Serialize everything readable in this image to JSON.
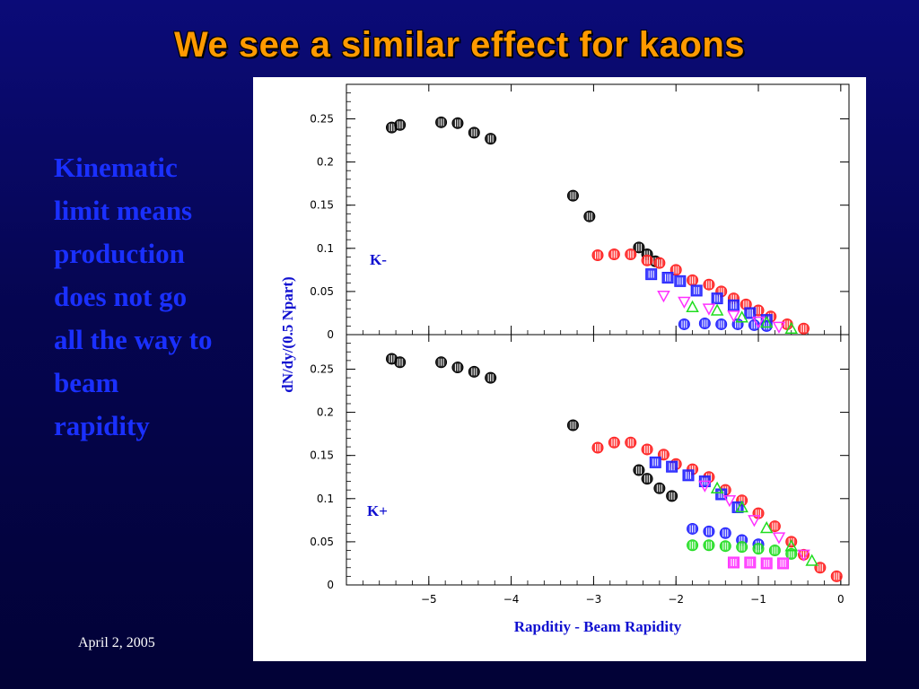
{
  "slide": {
    "title": "We see a similar effect for kaons",
    "body_lines": [
      "Kinematic",
      "limit means",
      "production",
      "does not go",
      "all the way to",
      "beam",
      "rapidity"
    ],
    "footer_date": "April 2, 2005"
  },
  "chart_data": [
    {
      "type": "scatter",
      "panel_label": "K-",
      "xlabel": "Rapditiy - Beam Rapidity",
      "ylabel": "dN/dy/(0.5 Npart)",
      "xlim": [
        -6,
        0.1
      ],
      "ylim": [
        0,
        0.29
      ],
      "x_ticks": [
        "−5",
        "−4",
        "−3",
        "−2",
        "−1",
        "0"
      ],
      "y_ticks": [
        "0",
        "0.05",
        "0.1",
        "0.15",
        "0.2",
        "0.25"
      ],
      "grid": false,
      "series": [
        {
          "color": "#000000",
          "marker": "circle",
          "x": [
            -5.45,
            -5.35,
            -4.85,
            -4.65,
            -4.45,
            -4.25,
            -3.25,
            -3.05,
            -2.45,
            -2.35,
            -2.25
          ],
          "y": [
            0.24,
            0.243,
            0.246,
            0.245,
            0.234,
            0.227,
            0.161,
            0.137,
            0.101,
            0.093,
            0.085
          ]
        },
        {
          "color": "#ff2020",
          "marker": "circle",
          "x": [
            -2.95,
            -2.75,
            -2.55,
            -2.35,
            -2.2,
            -2.0,
            -1.8,
            -1.6,
            -1.45,
            -1.3,
            -1.15,
            -1.0,
            -0.85,
            -0.65,
            -0.45
          ],
          "y": [
            0.092,
            0.093,
            0.093,
            0.086,
            0.083,
            0.075,
            0.063,
            0.058,
            0.05,
            0.042,
            0.035,
            0.028,
            0.021,
            0.012,
            0.007
          ]
        },
        {
          "color": "#2020ff",
          "marker": "square",
          "x": [
            -2.3,
            -2.1,
            -1.95,
            -1.75,
            -1.5,
            -1.3,
            -1.1,
            -0.9
          ],
          "y": [
            0.07,
            0.066,
            0.062,
            0.051,
            0.042,
            0.034,
            0.025,
            0.017
          ]
        },
        {
          "color": "#2020ff",
          "marker": "circle",
          "x": [
            -1.9,
            -1.65,
            -1.45,
            -1.25,
            -1.05,
            -0.9
          ],
          "y": [
            0.012,
            0.013,
            0.012,
            0.012,
            0.011,
            0.01
          ]
        },
        {
          "color": "#ff30ff",
          "marker": "triangle-down",
          "x": [
            -2.15,
            -1.9,
            -1.6,
            -1.3,
            -1.0,
            -0.75
          ],
          "y": [
            0.045,
            0.038,
            0.03,
            0.022,
            0.015,
            0.009
          ]
        },
        {
          "color": "#20dd20",
          "marker": "triangle-up",
          "x": [
            -1.8,
            -1.5,
            -1.2,
            -0.9,
            -0.6
          ],
          "y": [
            0.032,
            0.028,
            0.02,
            0.014,
            0.007
          ]
        }
      ]
    },
    {
      "type": "scatter",
      "panel_label": "K+",
      "xlabel": "Rapditiy - Beam Rapidity",
      "ylabel": "dN/dy/(0.5 Npart)",
      "xlim": [
        -6,
        0.1
      ],
      "ylim": [
        0,
        0.29
      ],
      "x_ticks": [
        "−5",
        "−4",
        "−3",
        "−2",
        "−1",
        "0"
      ],
      "y_ticks": [
        "0",
        "0.05",
        "0.1",
        "0.15",
        "0.2",
        "0.25"
      ],
      "grid": false,
      "series": [
        {
          "color": "#000000",
          "marker": "circle",
          "x": [
            -5.45,
            -5.35,
            -4.85,
            -4.65,
            -4.45,
            -4.25,
            -3.25,
            -2.45,
            -2.35,
            -2.2,
            -2.05
          ],
          "y": [
            0.262,
            0.258,
            0.258,
            0.252,
            0.247,
            0.24,
            0.185,
            0.133,
            0.123,
            0.112,
            0.103
          ]
        },
        {
          "color": "#ff2020",
          "marker": "circle",
          "x": [
            -2.95,
            -2.75,
            -2.55,
            -2.35,
            -2.15,
            -2.0,
            -1.8,
            -1.6,
            -1.4,
            -1.2,
            -1.0,
            -0.8,
            -0.6,
            -0.45,
            -0.25,
            -0.05
          ],
          "y": [
            0.159,
            0.165,
            0.165,
            0.157,
            0.151,
            0.14,
            0.134,
            0.125,
            0.11,
            0.098,
            0.083,
            0.068,
            0.05,
            0.035,
            0.02,
            0.01
          ]
        },
        {
          "color": "#2020ff",
          "marker": "square",
          "x": [
            -2.25,
            -2.05,
            -1.85,
            -1.65,
            -1.45,
            -1.25
          ],
          "y": [
            0.142,
            0.137,
            0.127,
            0.12,
            0.105,
            0.09
          ]
        },
        {
          "color": "#2020ff",
          "marker": "circle",
          "x": [
            -1.8,
            -1.6,
            -1.4,
            -1.2,
            -1.0
          ],
          "y": [
            0.065,
            0.062,
            0.06,
            0.052,
            0.047
          ]
        },
        {
          "color": "#ff30ff",
          "marker": "triangle-down",
          "x": [
            -1.65,
            -1.35,
            -1.05,
            -0.75,
            -0.45
          ],
          "y": [
            0.115,
            0.098,
            0.075,
            0.055,
            0.035
          ]
        },
        {
          "color": "#20dd20",
          "marker": "circle",
          "x": [
            -1.8,
            -1.6,
            -1.4,
            -1.2,
            -1.0,
            -0.8,
            -0.6
          ],
          "y": [
            0.046,
            0.046,
            0.045,
            0.044,
            0.042,
            0.04,
            0.036
          ]
        },
        {
          "color": "#ff30ff",
          "marker": "square",
          "x": [
            -1.3,
            -1.1,
            -0.9,
            -0.7
          ],
          "y": [
            0.026,
            0.026,
            0.025,
            0.025
          ]
        },
        {
          "color": "#20dd20",
          "marker": "triangle-up",
          "x": [
            -1.5,
            -1.2,
            -0.9,
            -0.6,
            -0.35
          ],
          "y": [
            0.112,
            0.09,
            0.066,
            0.045,
            0.028
          ]
        }
      ]
    }
  ]
}
